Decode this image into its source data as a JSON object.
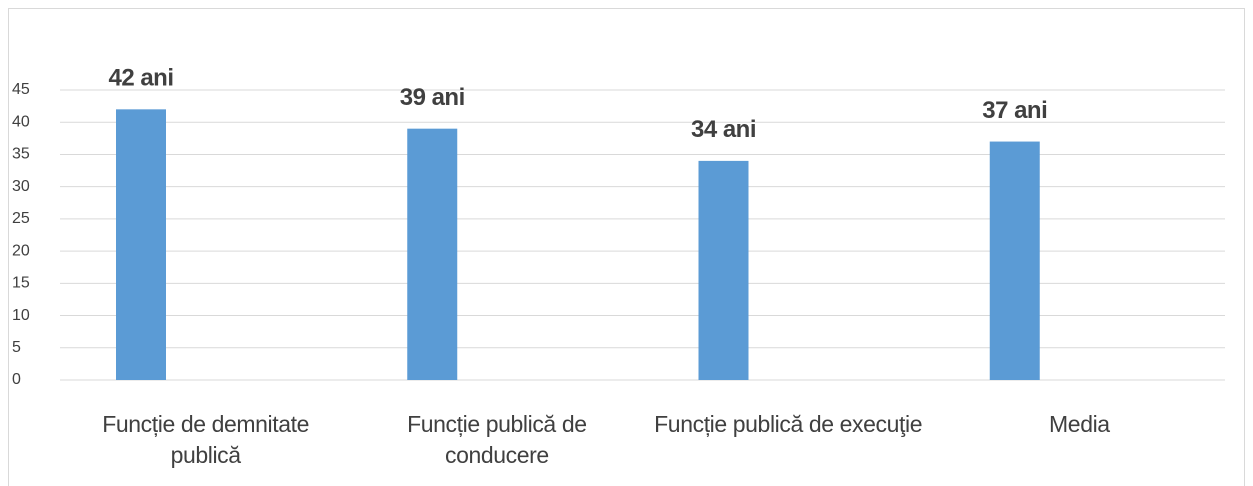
{
  "chart_data": {
    "type": "bar",
    "categories": [
      "Funcție de demnitate publică",
      "Funcție publică de conducere",
      "Funcție publică de execuţie",
      "Media"
    ],
    "values": [
      42,
      39,
      34,
      37
    ],
    "value_labels": [
      "42 ani",
      "39 ani",
      "34 ani",
      "37 ani"
    ],
    "color": "#5b9bd5",
    "ylim": [
      0,
      45
    ],
    "yticks": [
      0,
      5,
      10,
      15,
      20,
      25,
      30,
      35,
      40,
      45
    ],
    "grid": true
  }
}
